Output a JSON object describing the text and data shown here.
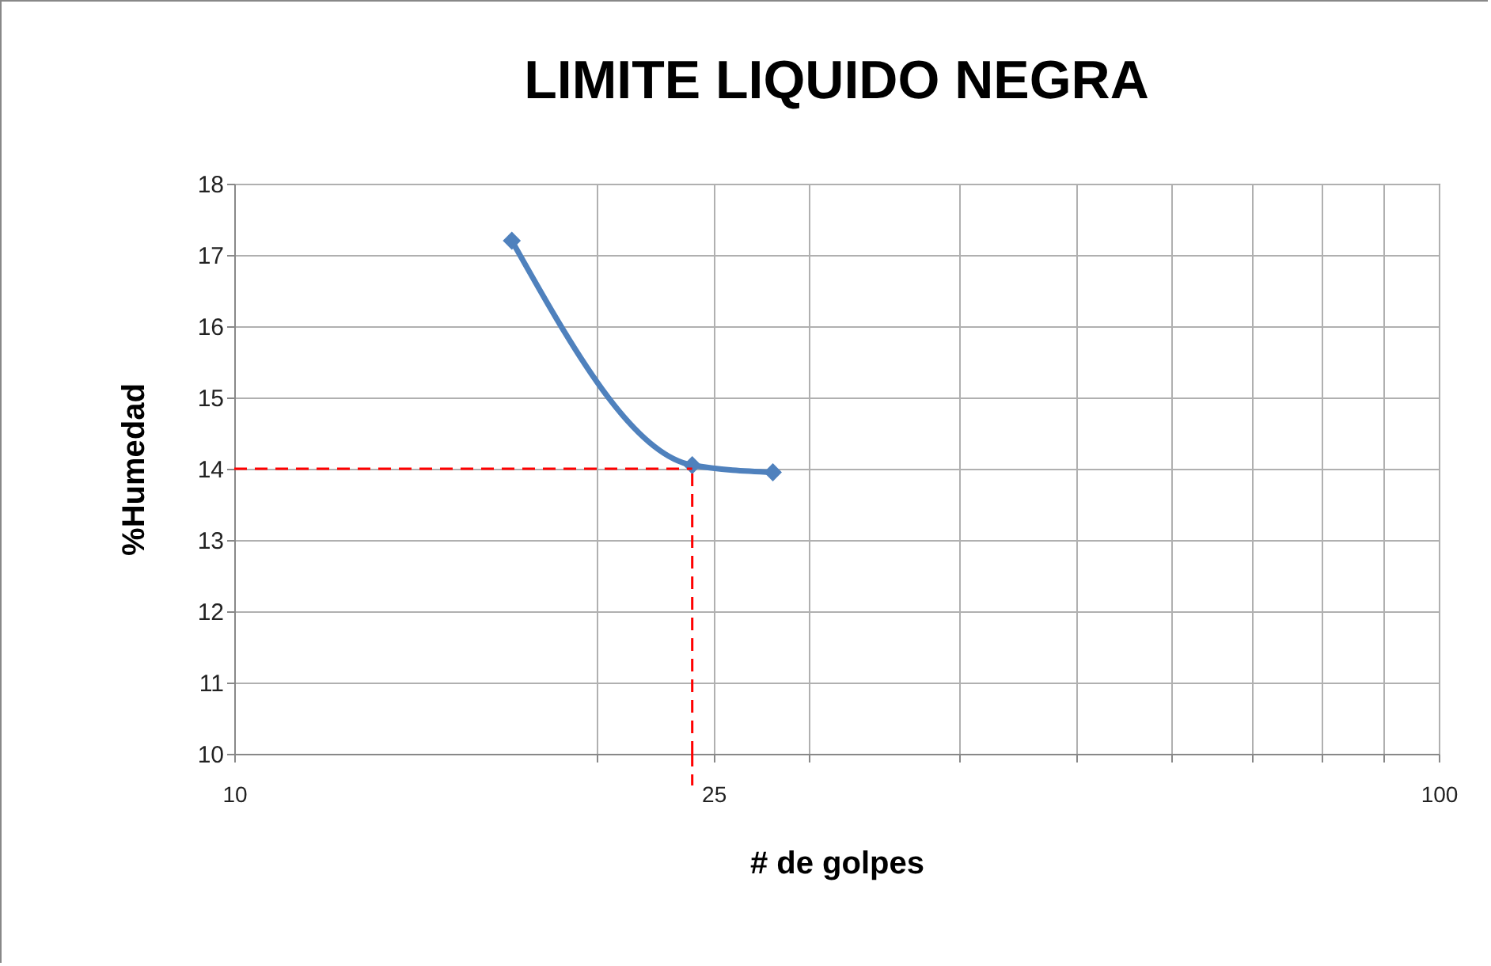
{
  "chart_data": {
    "type": "line",
    "title": "LIMITE LIQUIDO NEGRA",
    "xlabel": "# de golpes",
    "ylabel": "%Humedad",
    "log": "x",
    "xlim": [
      10,
      100
    ],
    "xticks": [
      10,
      {
        "value": 20,
        "label": null
      },
      {
        "value": 25,
        "label": "25"
      },
      {
        "value": 30,
        "label": null
      },
      {
        "value": 40,
        "label": null
      },
      {
        "value": 50,
        "label": null
      },
      {
        "value": 60,
        "label": null
      },
      {
        "value": 70,
        "label": null
      },
      {
        "value": 80,
        "label": null
      },
      {
        "value": 90,
        "label": null
      },
      100
    ],
    "ylim": [
      10,
      18
    ],
    "yticks": [
      10,
      11,
      12,
      13,
      14,
      15,
      16,
      17,
      18
    ],
    "grid": true,
    "marker": "diamond",
    "line_style": "solid",
    "series": [
      {
        "color": "#4f81bd",
        "x": [
          17,
          24,
          28
        ],
        "values": [
          17.2,
          14.05,
          13.95
        ]
      }
    ],
    "ref_lines": [
      {
        "axis": "y",
        "value": 14,
        "color": "#ff0000",
        "line_style": "dashed"
      },
      {
        "axis": "x",
        "value": 24,
        "color": "#ff0000",
        "line_style": "dashed"
      }
    ]
  }
}
